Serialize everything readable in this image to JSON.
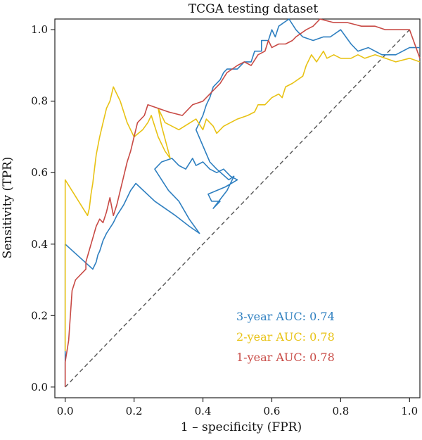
{
  "chart_data": {
    "type": "line",
    "title": "TCGA testing dataset",
    "xlabel": "1 – specificity (FPR)",
    "ylabel": "Sensitivity (TPR)",
    "xlim": [
      -0.03,
      1.03
    ],
    "ylim": [
      -0.03,
      1.03
    ],
    "xticks": [
      "0.0",
      "0.2",
      "0.4",
      "0.6",
      "0.8",
      "1.0"
    ],
    "yticks": [
      "0.0",
      "0.2",
      "0.4",
      "0.6",
      "0.8",
      "1.0"
    ],
    "grid": false,
    "reference_line": {
      "style": "dashed",
      "color": "#555555",
      "x": [
        0,
        1
      ],
      "y": [
        0,
        1
      ]
    },
    "series": [
      {
        "name": "3-year AUC: 0.74",
        "color": "#2e7fc0",
        "x": [
          0.0,
          0.0,
          0.08,
          0.09,
          0.095,
          0.1,
          0.11,
          0.12,
          0.14,
          0.15,
          0.17,
          0.19,
          0.205,
          0.26,
          0.32,
          0.36,
          0.39,
          0.36,
          0.33,
          0.3,
          0.28,
          0.26,
          0.28,
          0.31,
          0.33,
          0.35,
          0.37,
          0.38,
          0.4,
          0.42,
          0.44,
          0.46,
          0.48,
          0.5,
          0.465,
          0.44,
          0.415,
          0.425,
          0.45,
          0.43,
          0.47,
          0.49,
          0.475,
          0.44,
          0.42,
          0.38,
          0.4,
          0.41,
          0.42,
          0.43,
          0.45,
          0.46,
          0.47,
          0.5,
          0.52,
          0.54,
          0.55,
          0.57,
          0.57,
          0.59,
          0.6,
          0.61,
          0.62,
          0.65,
          0.67,
          0.69,
          0.72,
          0.75,
          0.77,
          0.8,
          0.83,
          0.85,
          0.88,
          0.92,
          0.96,
          1.0,
          1.03
        ],
        "y": [
          0.0,
          0.4,
          0.33,
          0.35,
          0.37,
          0.38,
          0.41,
          0.43,
          0.46,
          0.48,
          0.51,
          0.55,
          0.57,
          0.52,
          0.48,
          0.45,
          0.43,
          0.47,
          0.52,
          0.55,
          0.58,
          0.61,
          0.63,
          0.64,
          0.62,
          0.61,
          0.64,
          0.62,
          0.63,
          0.61,
          0.6,
          0.61,
          0.59,
          0.58,
          0.56,
          0.55,
          0.54,
          0.52,
          0.52,
          0.5,
          0.55,
          0.59,
          0.58,
          0.61,
          0.63,
          0.72,
          0.76,
          0.79,
          0.81,
          0.84,
          0.86,
          0.88,
          0.89,
          0.89,
          0.91,
          0.91,
          0.94,
          0.94,
          0.97,
          0.97,
          1.0,
          0.98,
          1.01,
          1.03,
          1.0,
          0.98,
          0.97,
          0.98,
          0.98,
          1.0,
          0.96,
          0.94,
          0.95,
          0.93,
          0.93,
          0.95,
          0.95
        ]
      },
      {
        "name": "2-year AUC: 0.78",
        "color": "#e8c214",
        "x": [
          0.0,
          0.0,
          0.065,
          0.07,
          0.075,
          0.08,
          0.085,
          0.09,
          0.1,
          0.11,
          0.12,
          0.13,
          0.14,
          0.16,
          0.18,
          0.2,
          0.225,
          0.24,
          0.25,
          0.27,
          0.29,
          0.305,
          0.28,
          0.27,
          0.29,
          0.33,
          0.38,
          0.4,
          0.41,
          0.43,
          0.44,
          0.46,
          0.5,
          0.53,
          0.55,
          0.56,
          0.58,
          0.6,
          0.62,
          0.63,
          0.64,
          0.66,
          0.69,
          0.7,
          0.715,
          0.73,
          0.75,
          0.76,
          0.78,
          0.8,
          0.83,
          0.85,
          0.87,
          0.9,
          0.93,
          0.96,
          1.0,
          1.03
        ],
        "y": [
          0.1,
          0.58,
          0.48,
          0.5,
          0.54,
          0.57,
          0.61,
          0.65,
          0.7,
          0.74,
          0.78,
          0.8,
          0.84,
          0.8,
          0.74,
          0.7,
          0.72,
          0.74,
          0.76,
          0.7,
          0.66,
          0.64,
          0.73,
          0.78,
          0.74,
          0.72,
          0.75,
          0.72,
          0.75,
          0.73,
          0.71,
          0.73,
          0.75,
          0.76,
          0.77,
          0.79,
          0.79,
          0.81,
          0.82,
          0.81,
          0.84,
          0.85,
          0.87,
          0.9,
          0.93,
          0.91,
          0.94,
          0.92,
          0.93,
          0.92,
          0.92,
          0.93,
          0.92,
          0.93,
          0.92,
          0.91,
          0.92,
          0.91
        ]
      },
      {
        "name": "1-year AUC: 0.78",
        "color": "#c84a45",
        "x": [
          0.0,
          0.0,
          0.01,
          0.02,
          0.03,
          0.06,
          0.06,
          0.09,
          0.1,
          0.11,
          0.12,
          0.13,
          0.14,
          0.15,
          0.16,
          0.17,
          0.18,
          0.19,
          0.2,
          0.21,
          0.23,
          0.24,
          0.27,
          0.3,
          0.34,
          0.37,
          0.4,
          0.43,
          0.45,
          0.47,
          0.5,
          0.52,
          0.54,
          0.56,
          0.58,
          0.59,
          0.6,
          0.62,
          0.64,
          0.66,
          0.67,
          0.7,
          0.72,
          0.74,
          0.78,
          0.82,
          0.86,
          0.9,
          0.93,
          0.96,
          1.0,
          1.03
        ],
        "y": [
          0.0,
          0.07,
          0.13,
          0.27,
          0.3,
          0.33,
          0.35,
          0.45,
          0.47,
          0.46,
          0.49,
          0.53,
          0.48,
          0.51,
          0.55,
          0.59,
          0.63,
          0.66,
          0.7,
          0.74,
          0.76,
          0.79,
          0.78,
          0.77,
          0.76,
          0.79,
          0.8,
          0.83,
          0.85,
          0.88,
          0.9,
          0.91,
          0.9,
          0.93,
          0.94,
          0.97,
          0.95,
          0.96,
          0.96,
          0.97,
          0.98,
          1.0,
          1.01,
          1.03,
          1.02,
          1.02,
          1.01,
          1.01,
          1.0,
          1.0,
          1.0,
          0.92
        ]
      }
    ]
  }
}
